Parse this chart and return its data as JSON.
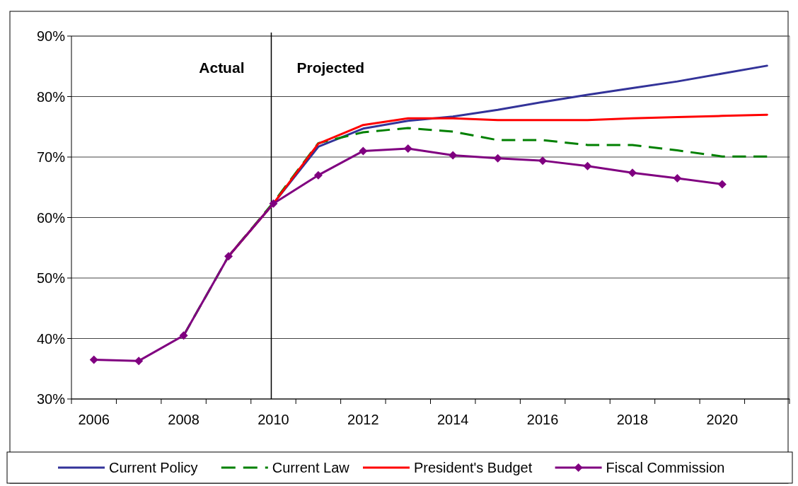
{
  "chart_data": {
    "type": "line",
    "categories": [
      "2006",
      null,
      "2008",
      null,
      "2010",
      null,
      "2012",
      null,
      "2014",
      null,
      "2016",
      null,
      "2018",
      null,
      "2020",
      null
    ],
    "series": [
      {
        "name": "Current Policy",
        "color": "#333399",
        "values": [
          null,
          null,
          null,
          53.6,
          62.3,
          71.7,
          74.7,
          76.0,
          76.7,
          77.8,
          79.1,
          80.3,
          81.4,
          82.5,
          83.8,
          85.1
        ]
      },
      {
        "name": "Current Law",
        "color": "#008000",
        "line_style": "dashed",
        "values": [
          null,
          null,
          40.5,
          53.6,
          62.5,
          72.3,
          74.1,
          74.8,
          74.2,
          72.8,
          72.8,
          72.0,
          72.0,
          71.1,
          70.1,
          70.1
        ]
      },
      {
        "name": "President's Budget",
        "color": "#ff0000",
        "values": [
          null,
          null,
          null,
          53.6,
          62.3,
          72.2,
          75.3,
          76.4,
          76.4,
          76.1,
          76.1,
          76.1,
          76.4,
          76.6,
          76.8,
          77.0
        ]
      },
      {
        "name": "Fiscal Commission",
        "color": "#800080",
        "marker": "diamond",
        "values": [
          36.5,
          36.3,
          40.5,
          53.6,
          62.3,
          67.0,
          71.0,
          71.4,
          70.3,
          69.8,
          69.4,
          68.5,
          67.4,
          66.5,
          65.5,
          null
        ]
      }
    ],
    "ylim": [
      30,
      90
    ],
    "yticks": [
      {
        "value": 30,
        "label": "30%"
      },
      {
        "value": 40,
        "label": "40%"
      },
      {
        "value": 50,
        "label": "50%"
      },
      {
        "value": 60,
        "label": "60%"
      },
      {
        "value": 70,
        "label": "70%"
      },
      {
        "value": 80,
        "label": "80%"
      },
      {
        "value": 90,
        "label": "90%"
      }
    ],
    "grid": "y",
    "legend": "bottom",
    "ref_lines": [
      {
        "axis": "x",
        "value": "2010",
        "color": "#000000"
      }
    ],
    "annotations": [
      "Actual",
      "Projected"
    ]
  }
}
